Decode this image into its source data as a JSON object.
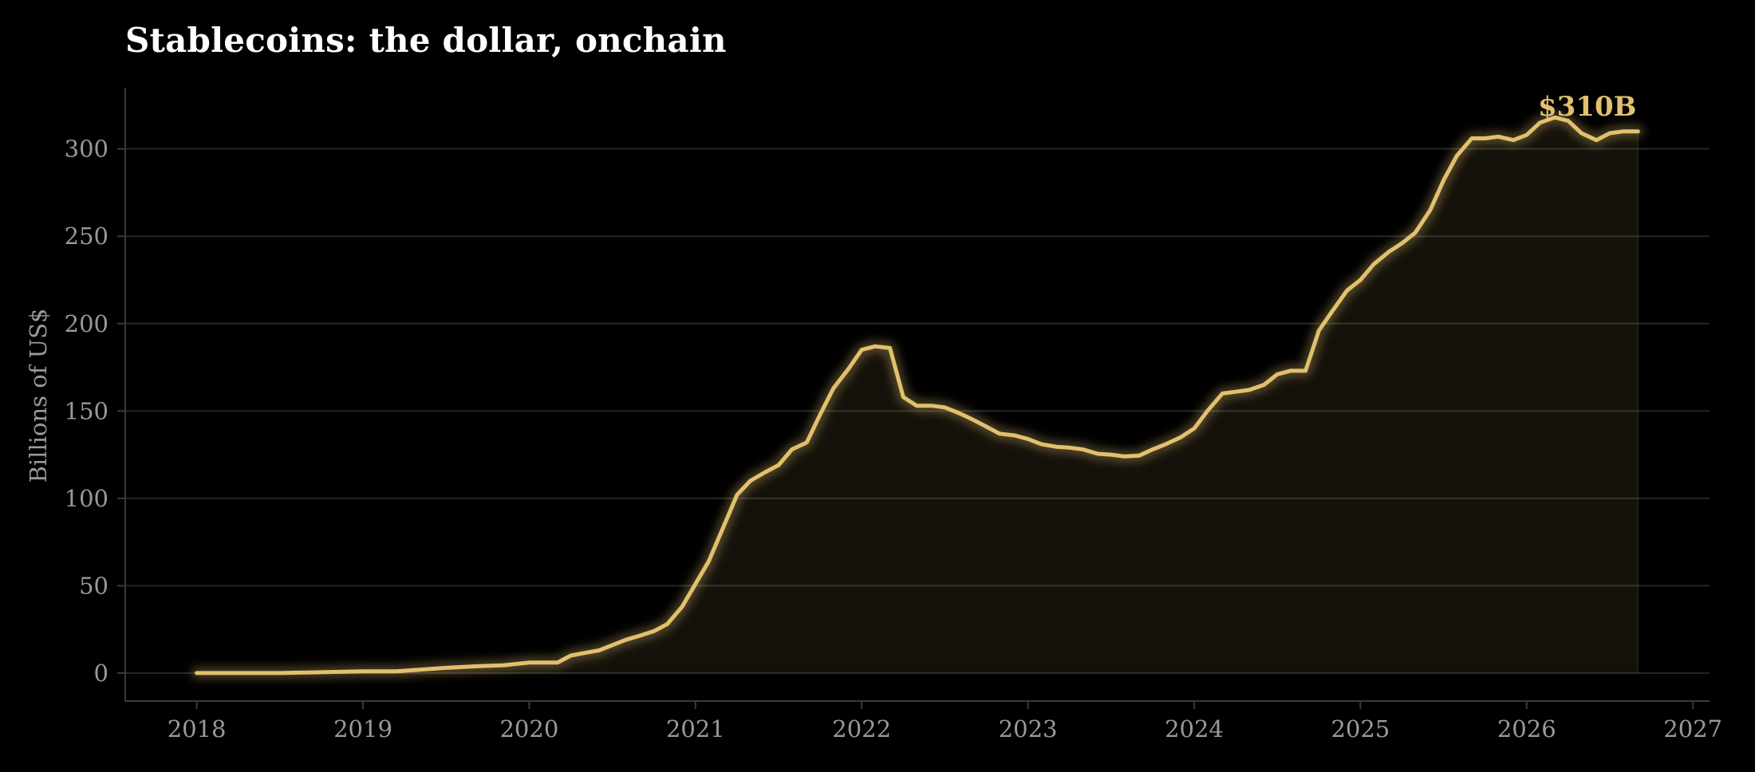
{
  "chart_data": {
    "type": "area",
    "title": "Stablecoins: the dollar, onchain",
    "xlabel": "",
    "ylabel": "Billions of US$",
    "xlim": [
      2017.57,
      2027.1
    ],
    "ylim": [
      -16,
      335
    ],
    "x_ticks": [
      2018,
      2019,
      2020,
      2021,
      2022,
      2023,
      2024,
      2025,
      2026,
      2027
    ],
    "x_tick_labels": [
      "2018",
      "2019",
      "2020",
      "2021",
      "2022",
      "2023",
      "2024",
      "2025",
      "2026",
      "2027"
    ],
    "y_ticks": [
      0,
      50,
      100,
      150,
      200,
      250,
      300
    ],
    "y_tick_labels": [
      "0",
      "50",
      "100",
      "150",
      "200",
      "250",
      "300"
    ],
    "grid": "horizontal",
    "line_color": "#e2c06e",
    "end_annotation": "$310B",
    "series": [
      {
        "x": [
          2018.0,
          2018.25,
          2018.5,
          2018.75,
          2019.0,
          2019.2,
          2019.5,
          2019.7,
          2019.85,
          2020.0,
          2020.17,
          2020.25,
          2020.33,
          2020.42,
          2020.5,
          2020.58,
          2020.67,
          2020.75,
          2020.83,
          2020.92,
          2021.0,
          2021.08,
          2021.17,
          2021.25,
          2021.33,
          2021.42,
          2021.5,
          2021.58,
          2021.67,
          2021.75,
          2021.83,
          2021.92,
          2022.0,
          2022.08,
          2022.17,
          2022.25,
          2022.33,
          2022.42,
          2022.5,
          2022.58,
          2022.67,
          2022.75,
          2022.83,
          2022.92,
          2023.0,
          2023.08,
          2023.17,
          2023.25,
          2023.33,
          2023.42,
          2023.5,
          2023.58,
          2023.67,
          2023.75,
          2023.83,
          2023.92,
          2024.0,
          2024.08,
          2024.17,
          2024.25,
          2024.33,
          2024.42,
          2024.5,
          2024.58,
          2024.67,
          2024.75,
          2024.83,
          2024.92,
          2025.0,
          2025.08,
          2025.17,
          2025.25,
          2025.33,
          2025.42,
          2025.5,
          2025.58,
          2025.67,
          2025.75,
          2025.83,
          2025.92,
          2026.0,
          2026.08,
          2026.17,
          2026.25,
          2026.33,
          2026.42,
          2026.5,
          2026.58,
          2026.67
        ],
        "y": [
          0,
          0,
          0,
          0.5,
          1,
          1,
          3,
          4,
          4.5,
          6,
          6,
          10,
          11.5,
          13,
          16,
          19,
          21.5,
          24,
          28,
          38,
          51,
          64,
          84,
          102,
          110,
          115,
          119,
          128,
          132,
          148,
          163,
          174,
          185,
          187,
          186,
          158,
          153,
          153,
          152,
          149,
          145,
          141,
          137,
          136,
          134,
          131,
          129.5,
          129,
          128,
          125.5,
          125,
          124,
          124.5,
          128,
          131,
          135,
          140,
          150,
          160,
          161,
          162,
          165,
          171,
          173,
          173,
          196,
          207,
          219,
          225,
          234,
          241,
          246,
          252,
          265,
          282,
          296,
          306,
          306,
          307,
          305,
          308,
          315,
          318,
          316,
          309,
          305,
          309,
          310,
          310
        ]
      }
    ]
  }
}
